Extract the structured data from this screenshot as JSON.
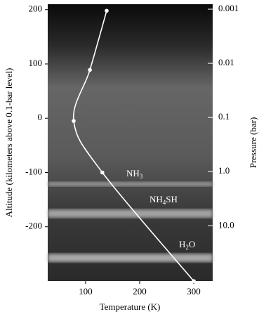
{
  "chart_data": {
    "type": "line",
    "x_label": "Temperature (K)",
    "y_label": "Altitude (kilometers above 0.1-bar level)",
    "y2_label": "Pressure (bar)",
    "x": [
      139,
      108,
      78,
      131,
      300
    ],
    "series": [
      {
        "color": "#ffffff",
        "values": [
          198,
          89,
          -5,
          -100,
          -300
        ]
      }
    ],
    "xlim": [
      30,
      335
    ],
    "xticks": [
      100,
      200,
      300
    ],
    "ylim": [
      -300,
      210
    ],
    "yticks": [
      200,
      100,
      0,
      -100,
      -200
    ],
    "y2lim": [
      105,
      0.00081
    ],
    "y2scale": "log",
    "y2ticks": [
      0.001,
      0.01,
      0.1,
      {
        "value": 1,
        "label": "1.0"
      },
      {
        "value": 10,
        "label": "10.0"
      }
    ],
    "annotations": [
      [
        "NH",
        "3"
      ],
      [
        "NH",
        "4",
        "SH"
      ],
      [
        "H",
        "2",
        "O"
      ]
    ]
  }
}
